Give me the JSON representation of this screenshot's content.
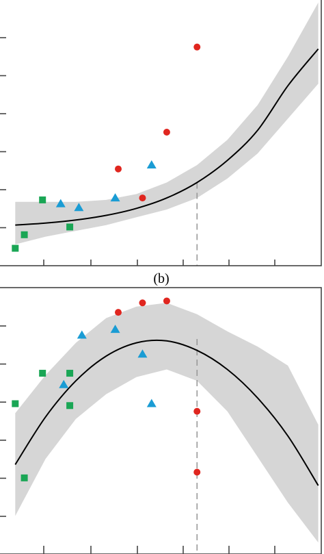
{
  "chart_data": [
    {
      "type": "scatter",
      "title": "",
      "xlabel": "",
      "ylabel": "",
      "xlim": [
        -0.3,
        10.1
      ],
      "ylim": [
        -0.2,
        6.7
      ],
      "grid": false,
      "legend": "none",
      "fit": {
        "kind": "exponential",
        "x": [
          0,
          1,
          2,
          3,
          4,
          5,
          6,
          7,
          8,
          9,
          10
        ],
        "y": [
          0.85,
          0.9,
          0.98,
          1.1,
          1.28,
          1.55,
          1.95,
          2.52,
          3.3,
          4.45,
          5.4
        ],
        "ci_lower": [
          0.35,
          0.55,
          0.7,
          0.85,
          1.05,
          1.25,
          1.55,
          2.05,
          2.7,
          3.6,
          4.5
        ],
        "ci_upper": [
          1.45,
          1.45,
          1.45,
          1.5,
          1.65,
          1.95,
          2.4,
          3.05,
          3.95,
          5.2,
          6.6
        ]
      },
      "reference_line_x": 6,
      "series": [
        {
          "marker": "square",
          "color": "#1aa655",
          "x": [
            0,
            0.3,
            0.9,
            1.8
          ],
          "y": [
            0.25,
            0.6,
            1.5,
            0.8
          ]
        },
        {
          "marker": "triangle",
          "color": "#1a9cd4",
          "x": [
            1.5,
            2.1,
            3.3,
            4.5
          ],
          "y": [
            1.4,
            1.3,
            1.55,
            2.4
          ]
        },
        {
          "marker": "circle",
          "color": "#e0261f",
          "x": [
            3.4,
            4.2,
            5.0,
            6.0
          ],
          "y": [
            2.3,
            1.55,
            3.25,
            5.45
          ]
        }
      ]
    },
    {
      "type": "scatter",
      "title": "(b)",
      "xlabel": "",
      "ylabel": "",
      "xlim": [
        -0.3,
        10.1
      ],
      "ylim": [
        -1.0,
        6.0
      ],
      "grid": false,
      "legend": "none",
      "fit": {
        "kind": "quadratic",
        "x": [
          0,
          1,
          2,
          3,
          4,
          5,
          6,
          7,
          8,
          9,
          10
        ],
        "y": [
          1.35,
          2.6,
          3.55,
          4.2,
          4.55,
          4.6,
          4.35,
          3.85,
          3.1,
          2.1,
          0.8
        ],
        "ci_lower": [
          0.0,
          1.5,
          2.55,
          3.2,
          3.65,
          3.85,
          3.55,
          2.75,
          1.55,
          0.35,
          -0.7
        ],
        "ci_upper": [
          2.7,
          3.7,
          4.55,
          5.2,
          5.5,
          5.6,
          5.3,
          4.85,
          4.45,
          3.95,
          2.4
        ]
      },
      "reference_line_x": 6,
      "series": [
        {
          "marker": "square",
          "color": "#1aa655",
          "x": [
            0,
            0.3,
            0.9,
            1.8,
            1.8
          ],
          "y": [
            2.95,
            1.0,
            3.75,
            3.75,
            2.9
          ]
        },
        {
          "marker": "triangle",
          "color": "#1a9cd4",
          "x": [
            1.6,
            2.2,
            3.3,
            4.2,
            4.5
          ],
          "y": [
            3.45,
            4.75,
            4.9,
            4.25,
            2.95
          ]
        },
        {
          "marker": "circle",
          "color": "#e0261f",
          "x": [
            3.4,
            4.2,
            5.0,
            6.0,
            6.0
          ],
          "y": [
            5.35,
            5.6,
            5.65,
            2.75,
            1.15
          ]
        }
      ]
    }
  ]
}
